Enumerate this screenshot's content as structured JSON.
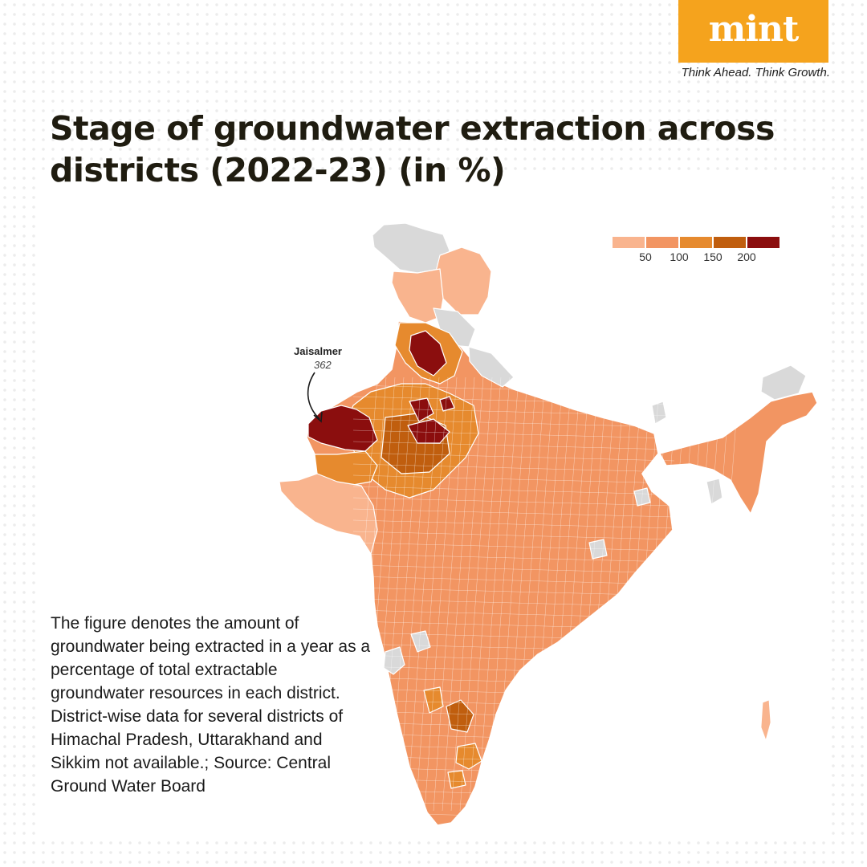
{
  "brand": {
    "logo": "mint",
    "tagline": "Think Ahead. Think Growth.",
    "logo_color": "#f5a31d"
  },
  "title": "Stage of groundwater extraction across districts (2022-23) (in %)",
  "chart_data": {
    "type": "choropleth",
    "region": "India (districts)",
    "legend": {
      "bins": [
        {
          "max": 50,
          "color": "#f9b48e"
        },
        {
          "max": 100,
          "color": "#f29562"
        },
        {
          "max": 150,
          "color": "#e68a2e"
        },
        {
          "max": 200,
          "color": "#c05e0e"
        },
        {
          "max": null,
          "color": "#8b0e0e"
        }
      ],
      "tick_labels": [
        "50",
        "100",
        "150",
        "200"
      ],
      "no_data_color": "#d9d9d9",
      "placement": "top-right"
    },
    "annotations": [
      {
        "name": "Jaisalmer",
        "value": 362
      }
    ]
  },
  "note": {
    "description": "The figure denotes the amount of groundwater being extracted in a year as a percentage of total extractable groundwater resources in each district.",
    "footnote": "District-wise data for several districts of Himachal Pradesh, Uttarakhand and Sikkim not available.; Source: Central Ground Water Board"
  },
  "colors": {
    "boundary": "#ffffff",
    "title_text": "#1f1c10"
  }
}
